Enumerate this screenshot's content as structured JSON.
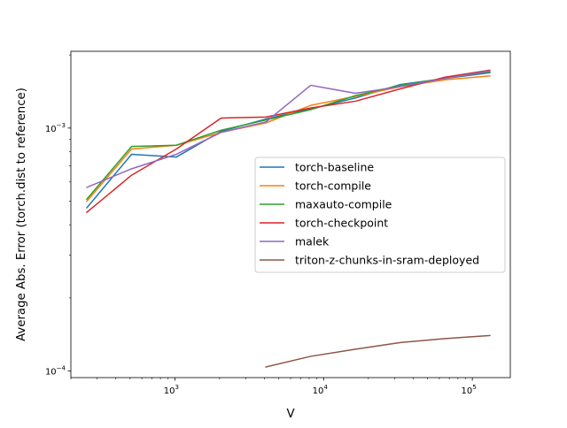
{
  "chart_data": {
    "type": "line",
    "title": "",
    "xlabel": "V",
    "ylabel": "Average Abs. Error (torch.dist to reference)",
    "xscale": "log",
    "yscale": "log",
    "xlim": [
      200,
      180000
    ],
    "ylim": [
      9.4e-05,
      0.00207
    ],
    "x_ticks": [
      {
        "value": 1000,
        "base": "10",
        "exp": "3"
      },
      {
        "value": 10000,
        "base": "10",
        "exp": "4"
      },
      {
        "value": 100000,
        "base": "10",
        "exp": "5"
      }
    ],
    "y_ticks": [
      {
        "value": 0.0001,
        "base": "10",
        "exp": "−4"
      },
      {
        "value": 0.001,
        "base": "10",
        "exp": "−3"
      }
    ],
    "grid": false,
    "legend_position": "center-right",
    "series": [
      {
        "name": "torch-baseline",
        "color": "#1f77b4",
        "x": [
          256,
          512,
          1024,
          2048,
          4096,
          8192,
          16384,
          32768,
          65536,
          131072
        ],
        "y": [
          0.00047,
          0.00078,
          0.00076,
          0.00097,
          0.00109,
          0.0012,
          0.00133,
          0.00151,
          0.0016,
          0.00169
        ]
      },
      {
        "name": "torch-compile",
        "color": "#ff7f0e",
        "x": [
          256,
          512,
          1024,
          2048,
          4096,
          8192,
          16384,
          32768,
          65536,
          131072
        ],
        "y": [
          0.0005,
          0.00082,
          0.00085,
          0.00096,
          0.00105,
          0.00124,
          0.00135,
          0.00148,
          0.00158,
          0.00164
        ]
      },
      {
        "name": "maxauto-compile",
        "color": "#2ca02c",
        "x": [
          256,
          512,
          1024,
          2048,
          4096,
          8192,
          16384,
          32768,
          65536,
          131072
        ],
        "y": [
          0.00051,
          0.00084,
          0.00085,
          0.00098,
          0.00108,
          0.00119,
          0.00136,
          0.0015,
          0.0016,
          0.00171
        ]
      },
      {
        "name": "torch-checkpoint",
        "color": "#d62728",
        "x": [
          256,
          512,
          1024,
          2048,
          4096,
          8192,
          16384,
          32768,
          65536,
          131072
        ],
        "y": [
          0.00045,
          0.00064,
          0.00082,
          0.0011,
          0.00111,
          0.00121,
          0.00129,
          0.00145,
          0.00162,
          0.00173
        ]
      },
      {
        "name": "malek",
        "color": "#9467bd",
        "x": [
          256,
          512,
          1024,
          2048,
          4096,
          8192,
          16384,
          32768,
          65536,
          131072
        ],
        "y": [
          0.00057,
          0.00068,
          0.00078,
          0.00096,
          0.00106,
          0.0015,
          0.00139,
          0.00148,
          0.0016,
          0.00172
        ]
      },
      {
        "name": "triton-z-chunks-in-sram-deployed",
        "color": "#8c564b",
        "x": [
          4096,
          8192,
          16384,
          32768,
          65536,
          131072
        ],
        "y": [
          0.000104,
          0.000115,
          0.000123,
          0.000131,
          0.000136,
          0.00014
        ]
      }
    ]
  }
}
